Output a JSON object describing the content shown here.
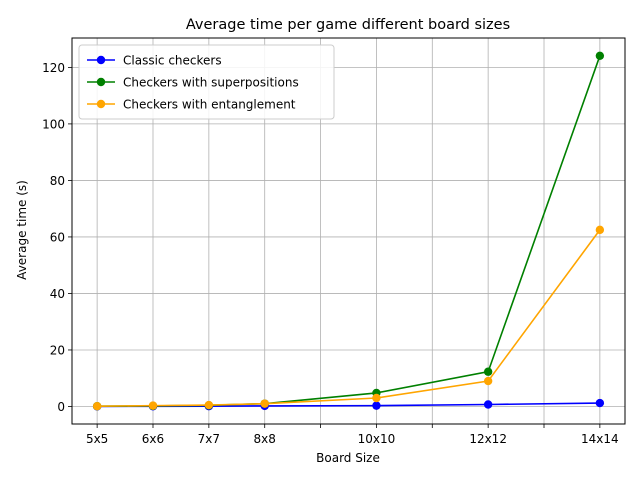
{
  "chart_data": {
    "type": "line",
    "title": "Average time per game different board sizes",
    "xlabel": "Board Size",
    "ylabel": "Average time (s)",
    "x": [
      5,
      6,
      7,
      8,
      9,
      10,
      11,
      12,
      13,
      14
    ],
    "x_tick_labels": [
      "5x5",
      "6x6",
      "7x7",
      "8x8",
      "",
      "10x10",
      "",
      "12x12",
      "",
      "14x14"
    ],
    "xlim": [
      4.55,
      14.45
    ],
    "ylim": [
      -6.2,
      130.4
    ],
    "y_ticks": [
      0,
      20,
      40,
      60,
      80,
      100,
      120
    ],
    "grid": true,
    "legend_position": "top-left",
    "series": [
      {
        "name": "Classic checkers",
        "color": "#0000ff",
        "x": [
          5,
          6,
          7,
          8,
          10,
          12,
          14
        ],
        "values": [
          0.02,
          0.05,
          0.1,
          0.2,
          0.3,
          0.7,
          1.2
        ]
      },
      {
        "name": "Checkers with superpositions",
        "color": "#008000",
        "x": [
          5,
          6,
          7,
          8,
          10,
          12,
          14
        ],
        "values": [
          0.1,
          0.2,
          0.4,
          1.0,
          4.8,
          12.3,
          124.1
        ]
      },
      {
        "name": "Checkers with entanglement",
        "color": "#ffa500",
        "x": [
          5,
          6,
          7,
          8,
          10,
          12,
          14
        ],
        "values": [
          0.1,
          0.3,
          0.5,
          1.0,
          3.0,
          9.0,
          62.5
        ]
      }
    ]
  }
}
